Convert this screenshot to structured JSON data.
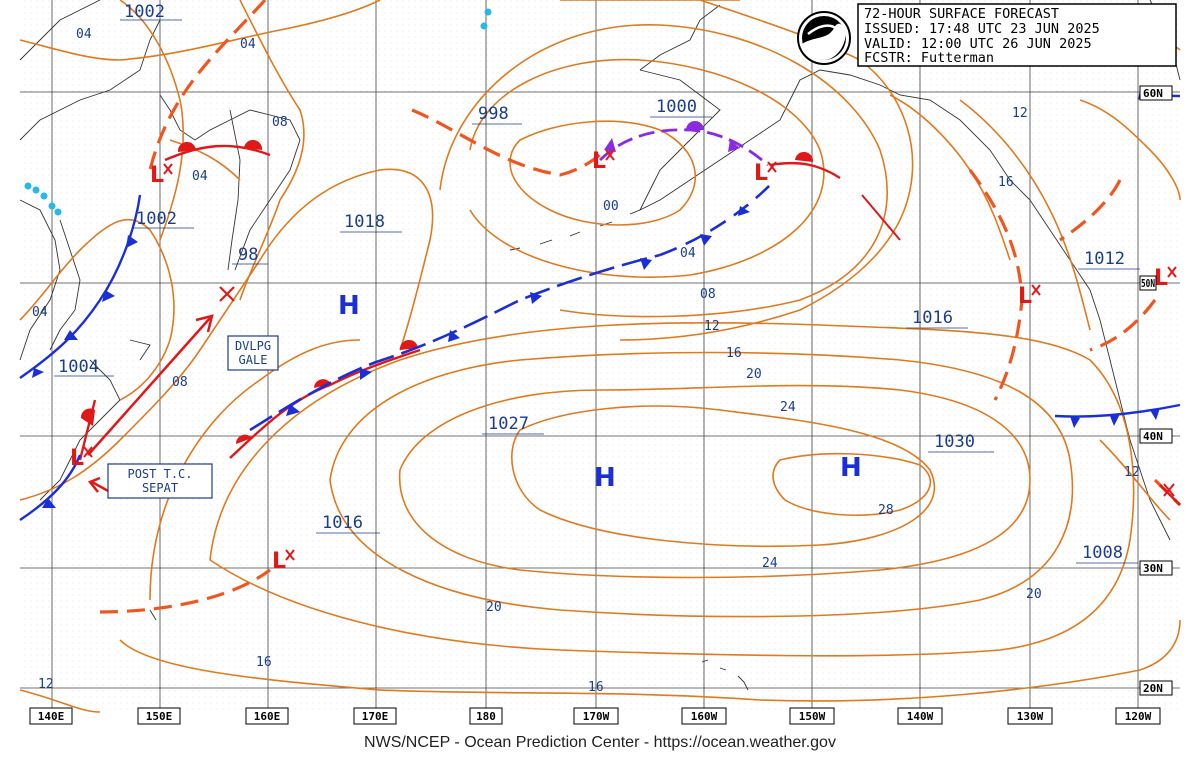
{
  "header": {
    "title": "72-HOUR SURFACE FORECAST",
    "issued": "ISSUED: 17:48 UTC 23 JUN 2025",
    "valid": "VALID:  12:00 UTC 26 JUN 2025",
    "forecaster": "FCSTR:  Futterman"
  },
  "footer": "NWS/NCEP - Ocean Prediction Center - https://ocean.weather.gov",
  "longitude_labels": [
    "140E",
    "150E",
    "160E",
    "170E",
    "180",
    "170W",
    "160W",
    "150W",
    "140W",
    "130W",
    "120W"
  ],
  "latitude_labels": [
    "60N",
    "50N",
    "40N",
    "30N",
    "20N"
  ],
  "pressure_labels": [
    "1002",
    "1002",
    "98",
    "1004",
    "1018",
    "998",
    "1000",
    "1027",
    "1016",
    "1012",
    "1016",
    "1030",
    "1008"
  ],
  "isobar_labels": [
    "04",
    "04",
    "08",
    "04",
    "04",
    "08",
    "00",
    "04",
    "08",
    "12",
    "16",
    "20",
    "24",
    "28",
    "24",
    "20",
    "20",
    "16",
    "16",
    "12",
    "12",
    "16",
    "12"
  ],
  "highs": [
    "H",
    "H",
    "H"
  ],
  "low_symbol": "L",
  "annotations": {
    "gale": [
      "DVLPG",
      "GALE"
    ],
    "post_tc": [
      "POST T.C.",
      "SEPAT"
    ]
  },
  "colors": {
    "isobar": "#e07a1f",
    "cold_front": "#1a2fd6",
    "warm_front": "#e01818",
    "occluded_front": "#8a2be2",
    "trough": "#f0561f",
    "label_text": "#1a3e8c"
  },
  "logo": "noaa"
}
